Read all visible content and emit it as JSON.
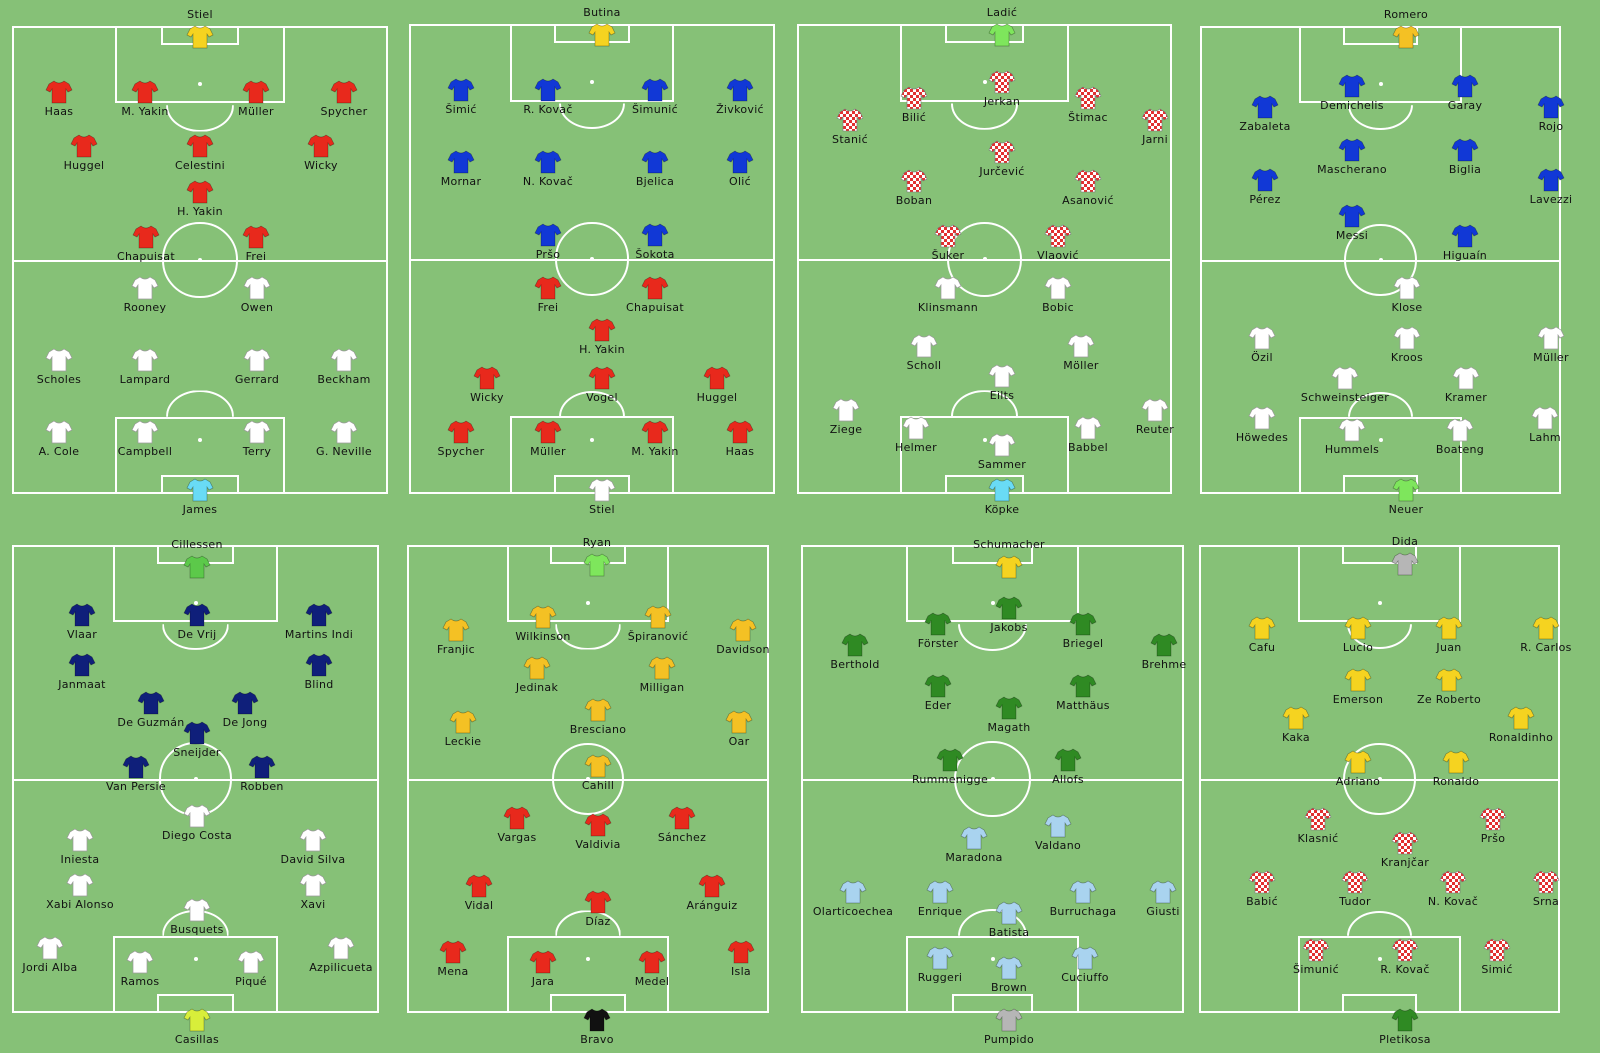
{
  "colors": {
    "grass": "#86c177",
    "lines": "#ffffff",
    "red": "#e8291c",
    "white": "#ffffff",
    "blue": "#1138d6",
    "navy": "#0f1f7a",
    "yellow": "#f5d320",
    "gold": "#f4c124",
    "lightblue": "#69dbf5",
    "lime": "#7ee65c",
    "green": "#2f8a23",
    "grey": "#b6b6b6",
    "black": "#111111",
    "skyblue": "#a9d3ef",
    "checker": "#e23030"
  },
  "matches": [
    {
      "team_top": "switzerland",
      "team_bottom": "england",
      "players": [
        {
          "name": "Stiel",
          "kit": "yellow",
          "pos": "GK-top"
        },
        {
          "name": "Haas",
          "kit": "red"
        },
        {
          "name": "M. Yakin",
          "kit": "red"
        },
        {
          "name": "Müller",
          "kit": "red"
        },
        {
          "name": "Spycher",
          "kit": "red"
        },
        {
          "name": "Huggel",
          "kit": "red"
        },
        {
          "name": "Celestini",
          "kit": "red"
        },
        {
          "name": "Wicky",
          "kit": "red"
        },
        {
          "name": "H. Yakin",
          "kit": "red"
        },
        {
          "name": "Chapuisat",
          "kit": "red"
        },
        {
          "name": "Frei",
          "kit": "red"
        },
        {
          "name": "Rooney",
          "kit": "white"
        },
        {
          "name": "Owen",
          "kit": "white"
        },
        {
          "name": "Scholes",
          "kit": "white"
        },
        {
          "name": "Lampard",
          "kit": "white"
        },
        {
          "name": "Gerrard",
          "kit": "white"
        },
        {
          "name": "Beckham",
          "kit": "white"
        },
        {
          "name": "A. Cole",
          "kit": "white"
        },
        {
          "name": "Campbell",
          "kit": "white"
        },
        {
          "name": "Terry",
          "kit": "white"
        },
        {
          "name": "G. Neville",
          "kit": "white"
        },
        {
          "name": "James",
          "kit": "lightblue"
        }
      ]
    },
    {
      "team_top": "croatia",
      "team_bottom": "switzerland",
      "players": [
        {
          "name": "Butina",
          "kit": "yellow"
        },
        {
          "name": "Šimić",
          "kit": "blue"
        },
        {
          "name": "R. Kovač",
          "kit": "blue"
        },
        {
          "name": "Šimunić",
          "kit": "blue"
        },
        {
          "name": "Živković",
          "kit": "blue"
        },
        {
          "name": "Mornar",
          "kit": "blue"
        },
        {
          "name": "N. Kovač",
          "kit": "blue"
        },
        {
          "name": "Bjelica",
          "kit": "blue"
        },
        {
          "name": "Olić",
          "kit": "blue"
        },
        {
          "name": "Pršo",
          "kit": "blue"
        },
        {
          "name": "Šokota",
          "kit": "blue"
        },
        {
          "name": "Frei",
          "kit": "red"
        },
        {
          "name": "Chapuisat",
          "kit": "red"
        },
        {
          "name": "H. Yakin",
          "kit": "red"
        },
        {
          "name": "Wicky",
          "kit": "red"
        },
        {
          "name": "Vogel",
          "kit": "red"
        },
        {
          "name": "Huggel",
          "kit": "red"
        },
        {
          "name": "Spycher",
          "kit": "red"
        },
        {
          "name": "Müller",
          "kit": "red"
        },
        {
          "name": "M. Yakin",
          "kit": "red"
        },
        {
          "name": "Haas",
          "kit": "red"
        },
        {
          "name": "Stiel",
          "kit": "white"
        }
      ]
    },
    {
      "team_top": "croatia-1996",
      "team_bottom": "germany-1996",
      "players": [
        {
          "name": "Ladić",
          "kit": "lime"
        },
        {
          "name": "Jerkan",
          "kit": "checker"
        },
        {
          "name": "Bilić",
          "kit": "checker"
        },
        {
          "name": "Štimac",
          "kit": "checker"
        },
        {
          "name": "Stanić",
          "kit": "checker"
        },
        {
          "name": "Jarni",
          "kit": "checker"
        },
        {
          "name": "Jurčević",
          "kit": "checker"
        },
        {
          "name": "Boban",
          "kit": "checker"
        },
        {
          "name": "Asanović",
          "kit": "checker"
        },
        {
          "name": "Šuker",
          "kit": "checker"
        },
        {
          "name": "Vlaović",
          "kit": "checker"
        },
        {
          "name": "Klinsmann",
          "kit": "white"
        },
        {
          "name": "Bobic",
          "kit": "white"
        },
        {
          "name": "Scholl",
          "kit": "white"
        },
        {
          "name": "Möller",
          "kit": "white"
        },
        {
          "name": "Eilts",
          "kit": "white"
        },
        {
          "name": "Ziege",
          "kit": "white"
        },
        {
          "name": "Helmer",
          "kit": "white"
        },
        {
          "name": "Reuter",
          "kit": "white"
        },
        {
          "name": "Babbel",
          "kit": "white"
        },
        {
          "name": "Sammer",
          "kit": "white"
        },
        {
          "name": "Köpke",
          "kit": "lightblue"
        }
      ]
    },
    {
      "team_top": "argentina",
      "team_bottom": "germany",
      "players": [
        {
          "name": "Romero",
          "kit": "gold"
        },
        {
          "name": "Demichelis",
          "kit": "blue"
        },
        {
          "name": "Garay",
          "kit": "blue"
        },
        {
          "name": "Zabaleta",
          "kit": "blue"
        },
        {
          "name": "Rojo",
          "kit": "blue"
        },
        {
          "name": "Mascherano",
          "kit": "blue"
        },
        {
          "name": "Biglia",
          "kit": "blue"
        },
        {
          "name": "Pérez",
          "kit": "blue"
        },
        {
          "name": "Lavezzi",
          "kit": "blue"
        },
        {
          "name": "Messi",
          "kit": "blue"
        },
        {
          "name": "Higuaín",
          "kit": "blue"
        },
        {
          "name": "Klose",
          "kit": "white"
        },
        {
          "name": "Özil",
          "kit": "white"
        },
        {
          "name": "Kroos",
          "kit": "white"
        },
        {
          "name": "Müller",
          "kit": "white"
        },
        {
          "name": "Schweinsteiger",
          "kit": "white"
        },
        {
          "name": "Kramer",
          "kit": "white"
        },
        {
          "name": "Höwedes",
          "kit": "white"
        },
        {
          "name": "Hummels",
          "kit": "white"
        },
        {
          "name": "Boateng",
          "kit": "white"
        },
        {
          "name": "Lahm",
          "kit": "white"
        },
        {
          "name": "Neuer",
          "kit": "lime"
        }
      ]
    },
    {
      "team_top": "netherlands",
      "team_bottom": "spain",
      "players": [
        {
          "name": "Cillessen",
          "kit": "green-light"
        },
        {
          "name": "Vlaar",
          "kit": "navy"
        },
        {
          "name": "De Vrij",
          "kit": "navy"
        },
        {
          "name": "Martins Indi",
          "kit": "navy"
        },
        {
          "name": "Janmaat",
          "kit": "navy"
        },
        {
          "name": "Blind",
          "kit": "navy"
        },
        {
          "name": "De Guzmán",
          "kit": "navy"
        },
        {
          "name": "De Jong",
          "kit": "navy"
        },
        {
          "name": "Sneijder",
          "kit": "navy"
        },
        {
          "name": "Van Persie",
          "kit": "navy"
        },
        {
          "name": "Robben",
          "kit": "navy"
        },
        {
          "name": "Diego Costa",
          "kit": "white"
        },
        {
          "name": "Iniesta",
          "kit": "white"
        },
        {
          "name": "David Silva",
          "kit": "white"
        },
        {
          "name": "Xabi Alonso",
          "kit": "white"
        },
        {
          "name": "Xavi",
          "kit": "white"
        },
        {
          "name": "Busquets",
          "kit": "white"
        },
        {
          "name": "Jordi Alba",
          "kit": "white"
        },
        {
          "name": "Ramos",
          "kit": "white"
        },
        {
          "name": "Piqué",
          "kit": "white"
        },
        {
          "name": "Azpilicueta",
          "kit": "white"
        },
        {
          "name": "Casillas",
          "kit": "yellowgreen"
        }
      ]
    },
    {
      "team_top": "australia",
      "team_bottom": "chile",
      "players": [
        {
          "name": "Ryan",
          "kit": "lime"
        },
        {
          "name": "Wilkinson",
          "kit": "gold"
        },
        {
          "name": "Špiranović",
          "kit": "gold"
        },
        {
          "name": "Franjic",
          "kit": "gold"
        },
        {
          "name": "Davidson",
          "kit": "gold"
        },
        {
          "name": "Jedinak",
          "kit": "gold"
        },
        {
          "name": "Milligan",
          "kit": "gold"
        },
        {
          "name": "Bresciano",
          "kit": "gold"
        },
        {
          "name": "Leckie",
          "kit": "gold"
        },
        {
          "name": "Oar",
          "kit": "gold"
        },
        {
          "name": "Cahill",
          "kit": "gold"
        },
        {
          "name": "Vargas",
          "kit": "red"
        },
        {
          "name": "Valdivia",
          "kit": "red"
        },
        {
          "name": "Sánchez",
          "kit": "red"
        },
        {
          "name": "Vidal",
          "kit": "red"
        },
        {
          "name": "Díaz",
          "kit": "red"
        },
        {
          "name": "Aránguiz",
          "kit": "red"
        },
        {
          "name": "Mena",
          "kit": "red"
        },
        {
          "name": "Jara",
          "kit": "red"
        },
        {
          "name": "Medel",
          "kit": "red"
        },
        {
          "name": "Isla",
          "kit": "red"
        },
        {
          "name": "Bravo",
          "kit": "black"
        }
      ]
    },
    {
      "team_top": "west-germany",
      "team_bottom": "argentina-1986",
      "players": [
        {
          "name": "Schumacher",
          "kit": "yellow"
        },
        {
          "name": "Jakobs",
          "kit": "green"
        },
        {
          "name": "Förster",
          "kit": "green"
        },
        {
          "name": "Briegel",
          "kit": "green"
        },
        {
          "name": "Berthold",
          "kit": "green"
        },
        {
          "name": "Brehme",
          "kit": "green"
        },
        {
          "name": "Eder",
          "kit": "green"
        },
        {
          "name": "Matthäus",
          "kit": "green"
        },
        {
          "name": "Magath",
          "kit": "green"
        },
        {
          "name": "Rummenigge",
          "kit": "green"
        },
        {
          "name": "Allofs",
          "kit": "green"
        },
        {
          "name": "Maradona",
          "kit": "skyblue"
        },
        {
          "name": "Valdano",
          "kit": "skyblue"
        },
        {
          "name": "Olarticoechea",
          "kit": "skyblue"
        },
        {
          "name": "Enrique",
          "kit": "skyblue"
        },
        {
          "name": "Burruchaga",
          "kit": "skyblue"
        },
        {
          "name": "Giusti",
          "kit": "skyblue"
        },
        {
          "name": "Batista",
          "kit": "skyblue"
        },
        {
          "name": "Ruggeri",
          "kit": "skyblue"
        },
        {
          "name": "Cuciuffo",
          "kit": "skyblue"
        },
        {
          "name": "Brown",
          "kit": "skyblue"
        },
        {
          "name": "Pumpido",
          "kit": "grey"
        }
      ]
    },
    {
      "team_top": "brazil",
      "team_bottom": "croatia-2006",
      "players": [
        {
          "name": "Dida",
          "kit": "grey"
        },
        {
          "name": "Cafu",
          "kit": "yellow"
        },
        {
          "name": "Lucio",
          "kit": "yellow"
        },
        {
          "name": "Juan",
          "kit": "yellow"
        },
        {
          "name": "R. Carlos",
          "kit": "yellow"
        },
        {
          "name": "Emerson",
          "kit": "yellow"
        },
        {
          "name": "Ze Roberto",
          "kit": "yellow"
        },
        {
          "name": "Kaka",
          "kit": "yellow"
        },
        {
          "name": "Ronaldinho",
          "kit": "yellow"
        },
        {
          "name": "Adriano",
          "kit": "yellow"
        },
        {
          "name": "Ronaldo",
          "kit": "yellow"
        },
        {
          "name": "Klasnić",
          "kit": "checker"
        },
        {
          "name": "Pršo",
          "kit": "checker"
        },
        {
          "name": "Kranjčar",
          "kit": "checker"
        },
        {
          "name": "Babić",
          "kit": "checker"
        },
        {
          "name": "Tudor",
          "kit": "checker"
        },
        {
          "name": "N. Kovač",
          "kit": "checker"
        },
        {
          "name": "Srna",
          "kit": "checker"
        },
        {
          "name": "Šimunić",
          "kit": "checker"
        },
        {
          "name": "R. Kovač",
          "kit": "checker"
        },
        {
          "name": "Simić",
          "kit": "checker"
        },
        {
          "name": "Pletikosa",
          "kit": "green"
        }
      ]
    }
  ]
}
